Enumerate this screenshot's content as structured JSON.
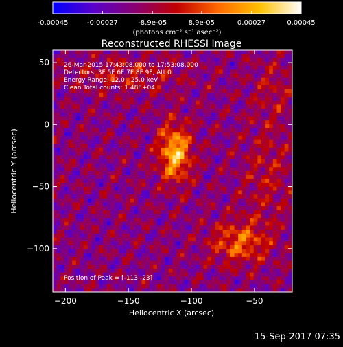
{
  "colorbar": {
    "tick_labels": [
      "-0.00045",
      "-0.00027",
      "-8.9e-05",
      "8.9e-05",
      "0.00027",
      "0.00045"
    ],
    "tick_values": [
      -0.00045,
      -0.00027,
      -8.9e-05,
      8.9e-05,
      0.00027,
      0.00045
    ],
    "range": [
      -0.00045,
      0.00045
    ],
    "unit_label": "(photons cm⁻² s⁻¹ asec⁻²)",
    "colormap": [
      "#0000ff",
      "#5a00c8",
      "#8a0070",
      "#c00000",
      "#ff6a00",
      "#ffc000",
      "#ffffff"
    ]
  },
  "chart_data": {
    "type": "heatmap",
    "title": "Reconstructed RHESSI Image",
    "xlabel": "Heliocentric X (arcsec)",
    "ylabel": "Heliocentric Y (arcsec)",
    "xlim": [
      -210,
      -20
    ],
    "ylim": [
      -135,
      60
    ],
    "x_ticks": [
      -200,
      -150,
      -100,
      -50
    ],
    "x_tick_labels": [
      "−200",
      "−150",
      "−100",
      "−50"
    ],
    "y_ticks": [
      50,
      0,
      -50,
      -100
    ],
    "y_tick_labels": [
      "50",
      "0",
      "−50",
      "−100"
    ],
    "annotations": [
      "26-Mar-2015 17:43:08.000 to 17:53:08.000",
      "Detectors: 3F 5F 6F 7F 8F 9F, Att 0",
      "Energy Range: 12.0 - 25.0 keV",
      "Clean    Total counts: 1.48E+04"
    ],
    "peak_label": "Position of Peak = [-113,-23]",
    "peak": [
      -113,
      -23
    ],
    "sources": [
      {
        "x": -113,
        "y": -23,
        "amp": 0.00045,
        "sx": 9,
        "sy": 16
      },
      {
        "x": -62,
        "y": -95,
        "amp": 0.00028,
        "sx": 16,
        "sy": 12
      },
      {
        "x": -150,
        "y": 40,
        "amp": 0.00014,
        "sx": 30,
        "sy": 10
      },
      {
        "x": -40,
        "y": -40,
        "amp": 0.00012,
        "sx": 14,
        "sy": 30
      },
      {
        "x": -35,
        "y": 30,
        "amp": 0.0001,
        "sx": 12,
        "sy": 18
      }
    ]
  },
  "footer": {
    "timestamp": "15-Sep-2017 07:35"
  }
}
